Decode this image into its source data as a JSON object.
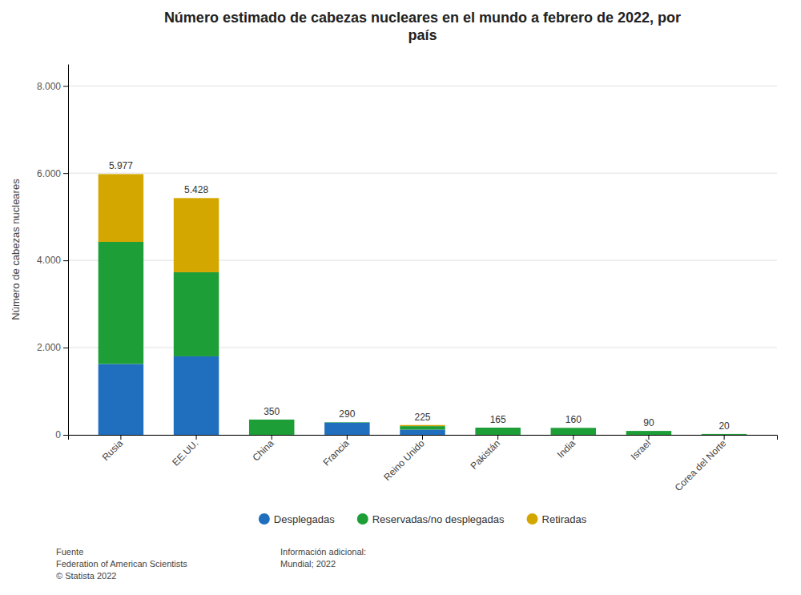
{
  "chart_data": {
    "type": "bar",
    "stacked": true,
    "title": "Número estimado de cabezas nucleares en el mundo a febrero de 2022, por\npaís",
    "ylabel": "Número de cabezas nucleares",
    "categories": [
      "Rusia",
      "EE.UU.",
      "China",
      "Francia",
      "Reino Unido",
      "Pakistán",
      "India",
      "Israel",
      "Corea del Norte"
    ],
    "series": [
      {
        "name": "Desplegadas",
        "color": "#1f6fbe",
        "values": [
          1625,
          1800,
          0,
          280,
          120,
          0,
          0,
          0,
          0
        ]
      },
      {
        "name": "Reservadas/no desplegadas",
        "color": "#1e9e37",
        "values": [
          2800,
          1928,
          350,
          10,
          80,
          165,
          160,
          90,
          20
        ]
      },
      {
        "name": "Retiradas",
        "color": "#d4a700",
        "values": [
          1552,
          1700,
          0,
          0,
          25,
          0,
          0,
          0,
          0
        ]
      }
    ],
    "totals": [
      5977,
      5428,
      350,
      290,
      225,
      165,
      160,
      90,
      20
    ],
    "total_labels": [
      "5.977",
      "5.428",
      "350",
      "290",
      "225",
      "165",
      "160",
      "90",
      "20"
    ],
    "ylim": [
      0,
      8500
    ],
    "yticks": [
      0,
      {
        "value": 2000,
        "label": "2.000"
      },
      {
        "value": 4000,
        "label": "4.000"
      },
      {
        "value": 6000,
        "label": "6.000"
      },
      {
        "value": 8000,
        "label": "8.000"
      }
    ],
    "grid": true,
    "legend": "bottom",
    "source": "Fuente\nFederation of American Scientists\n© Statista 2022",
    "note": "Información adicional:\nMundial; 2022"
  }
}
